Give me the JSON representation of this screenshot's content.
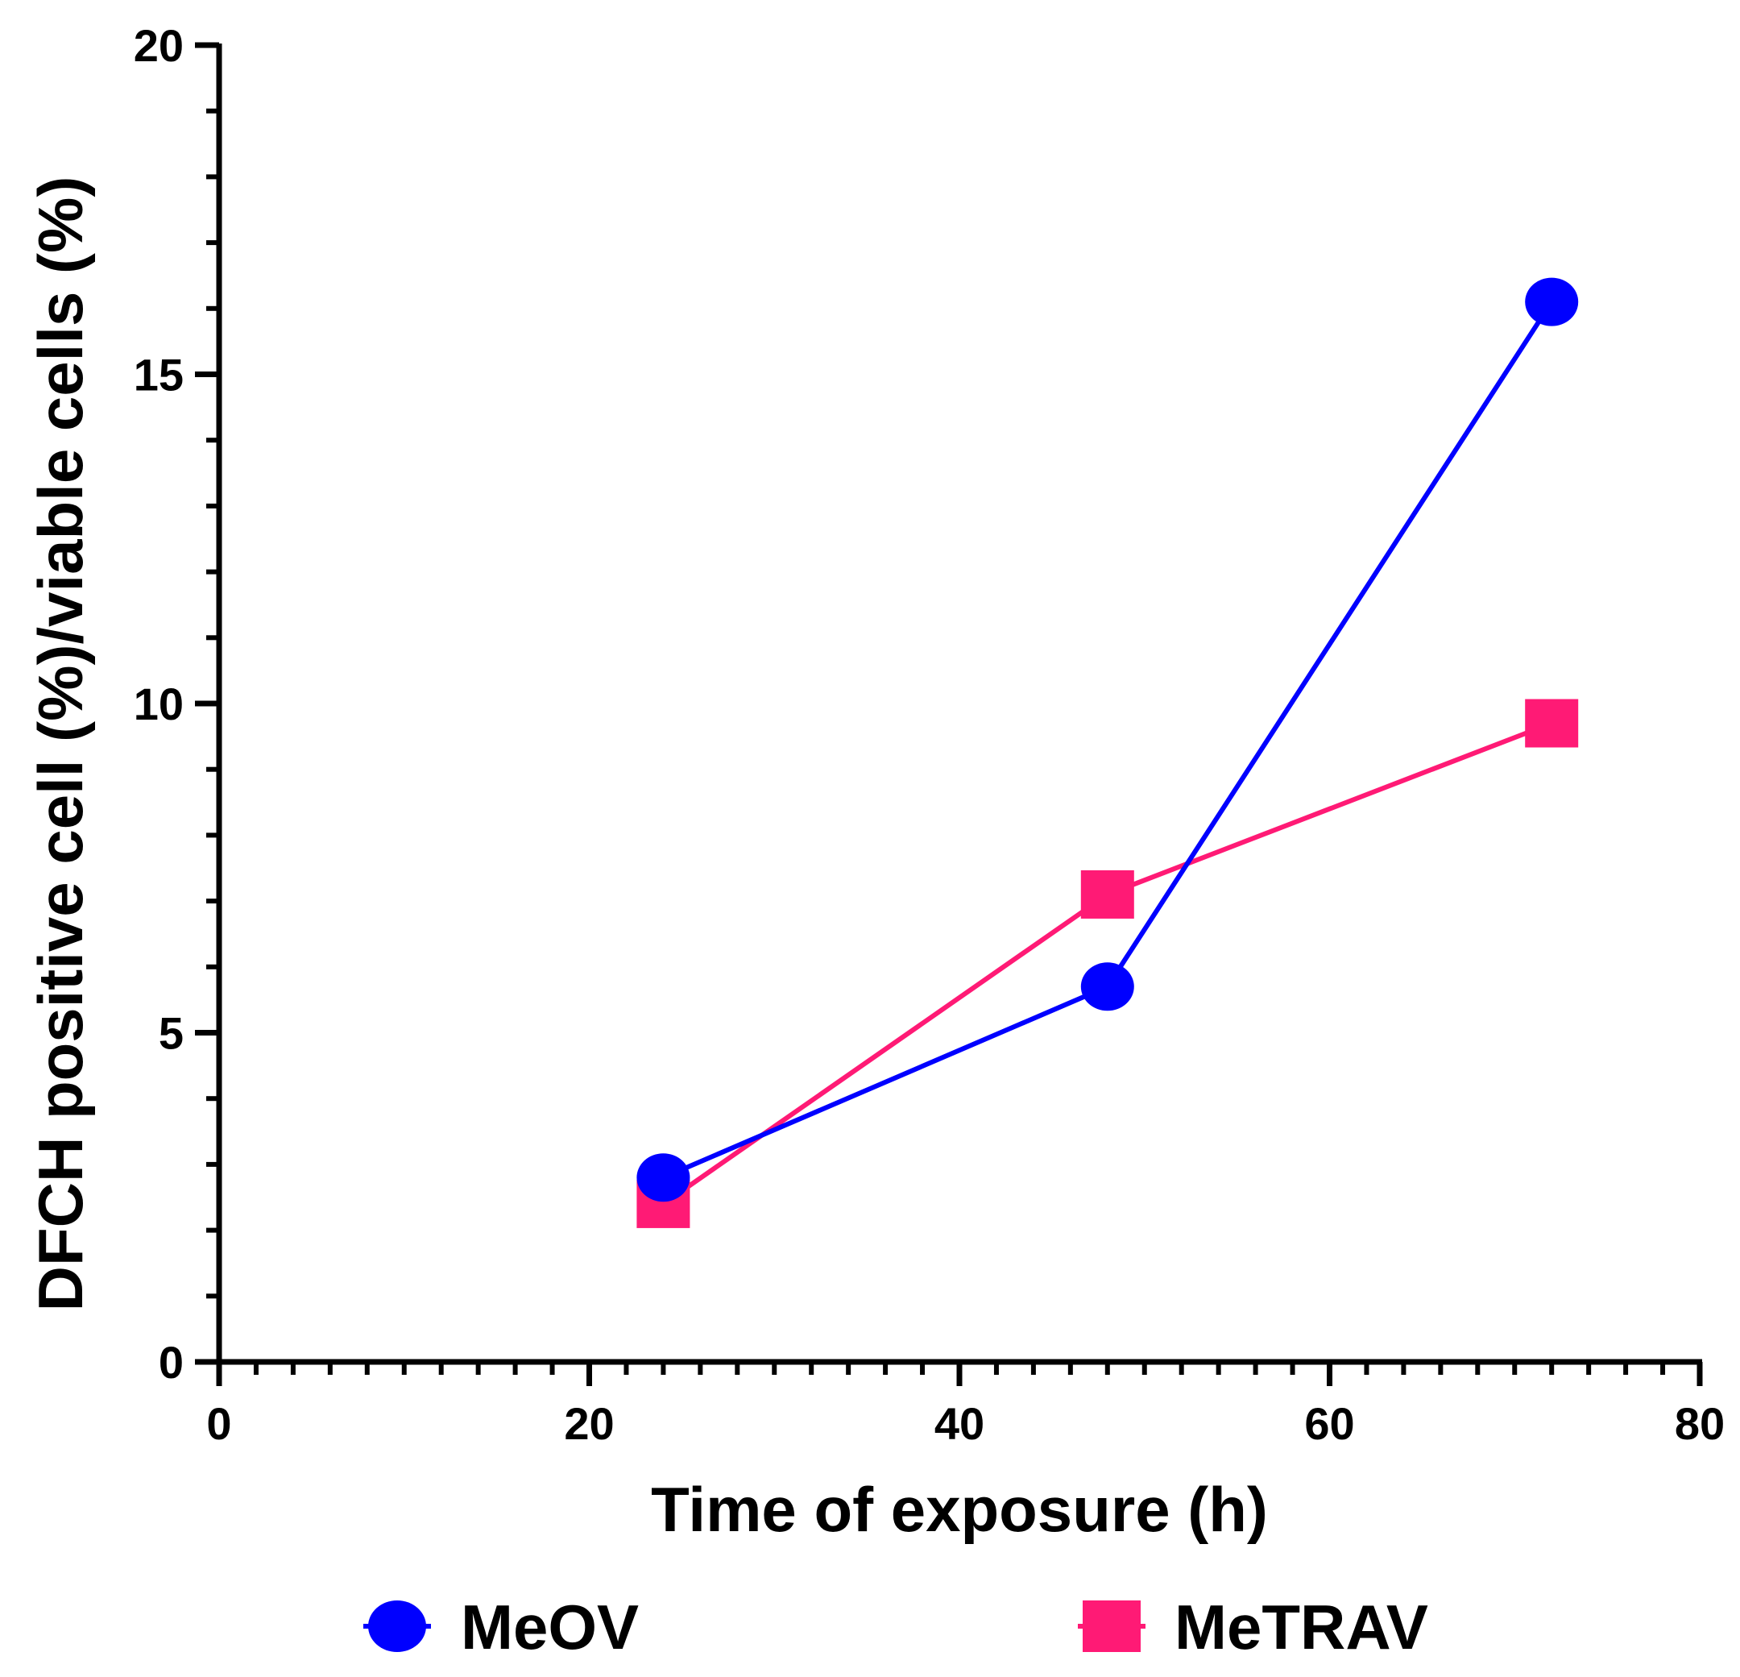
{
  "chart_data": {
    "type": "line",
    "title": "",
    "xlabel": "Time of exposure (h)",
    "ylabel": "DFCH positive cell (%)/viable cells (%)",
    "xlim": [
      0,
      80
    ],
    "ylim": [
      0,
      20
    ],
    "x_major_ticks": [
      0,
      20,
      40,
      60,
      80
    ],
    "x_tick_labels": [
      "0",
      "20",
      "40",
      "60",
      "80"
    ],
    "y_major_ticks": [
      0,
      5,
      10,
      15,
      20
    ],
    "y_tick_labels": [
      "0",
      "5",
      "10",
      "15",
      "20"
    ],
    "x_minor_step": 2,
    "y_minor_step": 1,
    "grid": false,
    "legend_position": "bottom",
    "series": [
      {
        "name": "MeOV",
        "marker": "circle",
        "color": "#0000ff",
        "x": [
          24,
          48,
          72
        ],
        "y": [
          2.8,
          5.7,
          16.1
        ]
      },
      {
        "name": "MeTRAV",
        "marker": "square",
        "color": "#ff1a75",
        "x": [
          24,
          48,
          72
        ],
        "y": [
          2.4,
          7.1,
          9.7
        ]
      }
    ]
  }
}
